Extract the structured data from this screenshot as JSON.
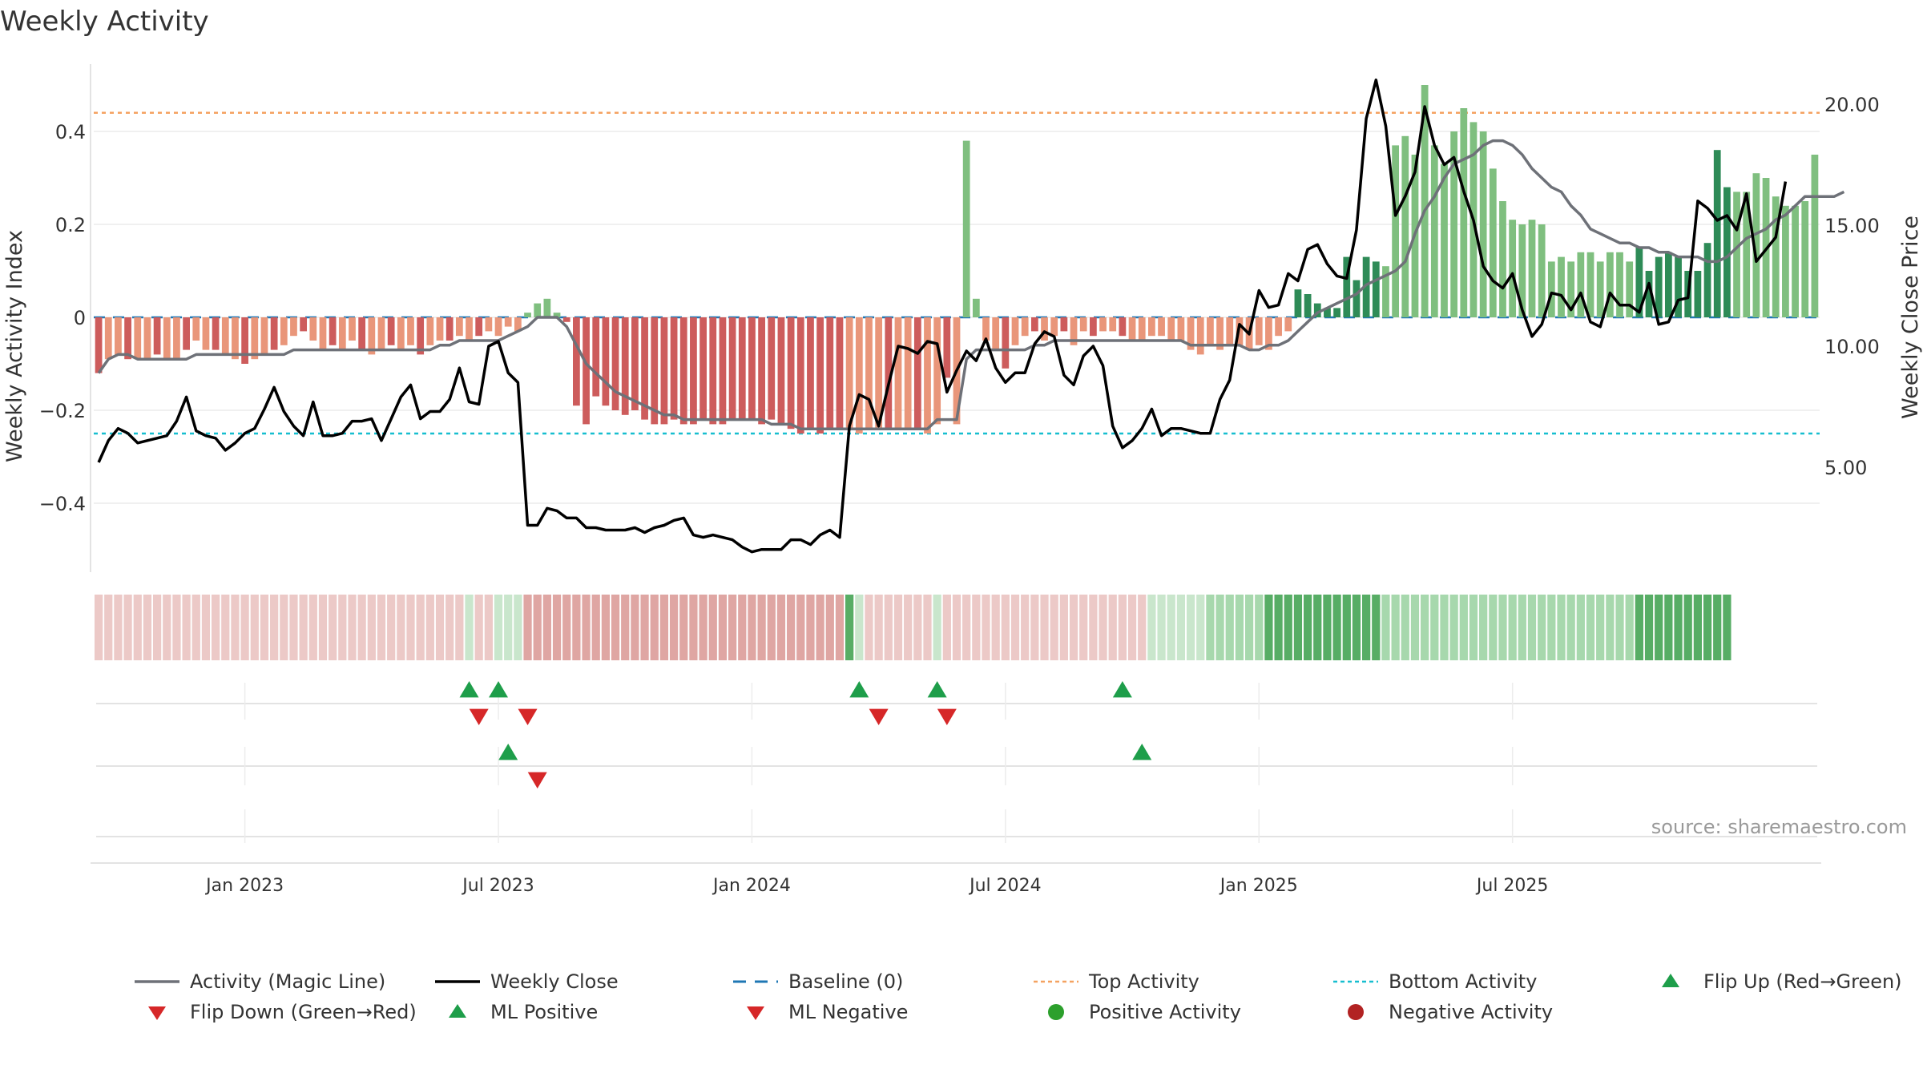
{
  "chart_data": {
    "type": "bar",
    "title": "Weekly Activity",
    "ylabel": "Weekly Activity Index",
    "y2label": "Weekly Close Price",
    "source": "source: sharemaestro.com",
    "ylim": [
      -0.55,
      0.55
    ],
    "y2lim": [
      0.6,
      22.2
    ],
    "y_ticks": [
      {
        "v": 0.4,
        "label": "0.4"
      },
      {
        "v": 0.2,
        "label": "0.2"
      },
      {
        "v": 0,
        "label": "0"
      },
      {
        "v": -0.2,
        "label": "−0.2"
      },
      {
        "v": -0.4,
        "label": "−0.4"
      }
    ],
    "y2_ticks": [
      {
        "v": 20,
        "label": "20.00"
      },
      {
        "v": 15,
        "label": "15.00"
      },
      {
        "v": 10,
        "label": "10.00"
      },
      {
        "v": 5,
        "label": "5.00"
      }
    ],
    "x_ticks": [
      {
        "week": 15,
        "label": "Jan 2023"
      },
      {
        "week": 41,
        "label": "Jul 2023"
      },
      {
        "week": 67,
        "label": "Jan 2024"
      },
      {
        "week": 93,
        "label": "Jul 2024"
      },
      {
        "week": 119,
        "label": "Jan 2025"
      },
      {
        "week": 145,
        "label": "Jul 2025"
      }
    ],
    "top_activity": 0.44,
    "bottom_activity": -0.25,
    "baseline": 0,
    "activity": [
      -0.12,
      -0.09,
      -0.08,
      -0.09,
      -0.09,
      -0.09,
      -0.08,
      -0.09,
      -0.09,
      -0.07,
      -0.05,
      -0.07,
      -0.07,
      -0.08,
      -0.09,
      -0.1,
      -0.09,
      -0.08,
      -0.07,
      -0.06,
      -0.04,
      -0.03,
      -0.05,
      -0.07,
      -0.06,
      -0.07,
      -0.05,
      -0.07,
      -0.08,
      -0.07,
      -0.06,
      -0.07,
      -0.06,
      -0.08,
      -0.06,
      -0.05,
      -0.05,
      -0.04,
      -0.05,
      -0.04,
      -0.03,
      -0.04,
      -0.02,
      -0.03,
      0.01,
      0.03,
      0.04,
      0.01,
      -0.01,
      -0.19,
      -0.23,
      -0.17,
      -0.19,
      -0.2,
      -0.21,
      -0.2,
      -0.22,
      -0.23,
      -0.23,
      -0.22,
      -0.23,
      -0.23,
      -0.22,
      -0.23,
      -0.23,
      -0.22,
      -0.22,
      -0.22,
      -0.23,
      -0.22,
      -0.23,
      -0.24,
      -0.25,
      -0.24,
      -0.25,
      -0.24,
      -0.24,
      -0.24,
      -0.25,
      -0.24,
      -0.24,
      -0.24,
      -0.24,
      -0.24,
      -0.24,
      -0.25,
      -0.23,
      -0.13,
      -0.23,
      0.38,
      0.04,
      -0.05,
      -0.07,
      -0.11,
      -0.06,
      -0.04,
      -0.03,
      -0.05,
      -0.04,
      -0.03,
      -0.06,
      -0.03,
      -0.04,
      -0.03,
      -0.03,
      -0.04,
      -0.05,
      -0.05,
      -0.04,
      -0.04,
      -0.05,
      -0.05,
      -0.07,
      -0.08,
      -0.06,
      -0.07,
      -0.06,
      -0.06,
      -0.07,
      -0.06,
      -0.07,
      -0.04,
      -0.03,
      0.06,
      0.05,
      0.03,
      0.02,
      0.02,
      0.13,
      0.08,
      0.13,
      0.12,
      0.11,
      0.37,
      0.39,
      0.35,
      0.5,
      0.37,
      0.33,
      0.4,
      0.45,
      0.42,
      0.4,
      0.32,
      0.25,
      0.21,
      0.2,
      0.21,
      0.2,
      0.12,
      0.13,
      0.12,
      0.14,
      0.14,
      0.12,
      0.14,
      0.14,
      0.12,
      0.15,
      0.1,
      0.13,
      0.14,
      0.13,
      0.1,
      0.1,
      0.16,
      0.36,
      0.28,
      0.27,
      0.27,
      0.31,
      0.3,
      0.26,
      0.24,
      0.24,
      0.25,
      0.35
    ],
    "magic_line": [
      -0.12,
      -0.09,
      -0.08,
      -0.08,
      -0.09,
      -0.09,
      -0.09,
      -0.09,
      -0.09,
      -0.09,
      -0.08,
      -0.08,
      -0.08,
      -0.08,
      -0.08,
      -0.08,
      -0.08,
      -0.08,
      -0.08,
      -0.08,
      -0.07,
      -0.07,
      -0.07,
      -0.07,
      -0.07,
      -0.07,
      -0.07,
      -0.07,
      -0.07,
      -0.07,
      -0.07,
      -0.07,
      -0.07,
      -0.07,
      -0.07,
      -0.06,
      -0.06,
      -0.05,
      -0.05,
      -0.05,
      -0.05,
      -0.05,
      -0.04,
      -0.03,
      -0.02,
      0.0,
      0.0,
      0.0,
      -0.02,
      -0.06,
      -0.1,
      -0.12,
      -0.14,
      -0.16,
      -0.17,
      -0.18,
      -0.19,
      -0.2,
      -0.21,
      -0.21,
      -0.22,
      -0.22,
      -0.22,
      -0.22,
      -0.22,
      -0.22,
      -0.22,
      -0.22,
      -0.22,
      -0.23,
      -0.23,
      -0.23,
      -0.24,
      -0.24,
      -0.24,
      -0.24,
      -0.24,
      -0.24,
      -0.24,
      -0.24,
      -0.24,
      -0.24,
      -0.24,
      -0.24,
      -0.24,
      -0.24,
      -0.22,
      -0.22,
      -0.22,
      -0.09,
      -0.07,
      -0.07,
      -0.07,
      -0.07,
      -0.07,
      -0.07,
      -0.06,
      -0.06,
      -0.05,
      -0.05,
      -0.05,
      -0.05,
      -0.05,
      -0.05,
      -0.05,
      -0.05,
      -0.05,
      -0.05,
      -0.05,
      -0.05,
      -0.05,
      -0.05,
      -0.06,
      -0.06,
      -0.06,
      -0.06,
      -0.06,
      -0.06,
      -0.07,
      -0.07,
      -0.06,
      -0.06,
      -0.05,
      -0.03,
      -0.01,
      0.01,
      0.02,
      0.03,
      0.04,
      0.05,
      0.07,
      0.08,
      0.09,
      0.1,
      0.12,
      0.18,
      0.23,
      0.26,
      0.3,
      0.33,
      0.34,
      0.35,
      0.37,
      0.38,
      0.38,
      0.37,
      0.35,
      0.32,
      0.3,
      0.28,
      0.27,
      0.24,
      0.22,
      0.19,
      0.18,
      0.17,
      0.16,
      0.16,
      0.15,
      0.15,
      0.14,
      0.14,
      0.13,
      0.13,
      0.13,
      0.12,
      0.12,
      0.13,
      0.15,
      0.17,
      0.18,
      0.19,
      0.21,
      0.22,
      0.24,
      0.26,
      0.26,
      0.26,
      0.26,
      0.27
    ],
    "weekly_close": [
      5.2,
      6.1,
      6.6,
      6.4,
      6.0,
      6.1,
      6.2,
      6.3,
      6.9,
      7.9,
      6.5,
      6.3,
      6.2,
      5.7,
      6.0,
      6.4,
      6.6,
      7.4,
      8.3,
      7.3,
      6.7,
      6.3,
      7.7,
      6.3,
      6.3,
      6.4,
      6.9,
      6.9,
      7.0,
      6.1,
      7.0,
      7.9,
      8.4,
      7.0,
      7.3,
      7.3,
      7.8,
      9.1,
      7.7,
      7.6,
      10.0,
      10.2,
      8.9,
      8.5,
      2.6,
      2.6,
      3.3,
      3.2,
      2.9,
      2.9,
      2.5,
      2.5,
      2.4,
      2.4,
      2.4,
      2.5,
      2.3,
      2.5,
      2.6,
      2.8,
      2.9,
      2.2,
      2.1,
      2.2,
      2.1,
      2.0,
      1.7,
      1.5,
      1.6,
      1.6,
      1.6,
      2.0,
      2.0,
      1.8,
      2.2,
      2.4,
      2.1,
      6.7,
      8.0,
      7.8,
      6.7,
      8.4,
      10.0,
      9.9,
      9.7,
      10.2,
      10.1,
      8.1,
      9.0,
      9.8,
      9.4,
      10.3,
      9.1,
      8.5,
      8.9,
      8.9,
      10.1,
      10.6,
      10.4,
      8.8,
      8.4,
      9.6,
      10.0,
      9.2,
      6.7,
      5.8,
      6.1,
      6.6,
      7.4,
      6.3,
      6.6,
      6.6,
      6.5,
      6.4,
      6.4,
      7.8,
      8.6,
      10.9,
      10.5,
      12.3,
      11.6,
      11.7,
      13.0,
      12.7,
      14.0,
      14.2,
      13.4,
      12.9,
      12.8,
      14.8,
      19.4,
      21.0,
      19.1,
      15.4,
      16.2,
      17.2,
      19.9,
      18.3,
      17.5,
      17.8,
      16.4,
      15.2,
      13.3,
      12.7,
      12.4,
      13.0,
      11.5,
      10.4,
      10.9,
      12.2,
      12.1,
      11.5,
      12.2,
      11.0,
      10.8,
      12.2,
      11.7,
      11.7,
      11.4,
      12.6,
      10.9,
      11.0,
      11.9,
      12.0,
      16.0,
      15.7,
      15.2,
      15.4,
      14.8,
      16.3,
      13.5,
      14.0,
      14.5,
      16.8
    ],
    "strip": [
      -1,
      -1,
      -1,
      -1,
      -1,
      -1,
      -1,
      -1,
      -1,
      -1,
      -1,
      -1,
      -1,
      -1,
      -1,
      -1,
      -1,
      -1,
      -1,
      -1,
      -1,
      -1,
      -1,
      -1,
      -1,
      -1,
      -1,
      -1,
      -1,
      -1,
      -1,
      -1,
      -1,
      -1,
      -1,
      -1,
      -1,
      -1,
      1,
      -1,
      -1,
      1,
      1,
      1,
      -2,
      -2,
      -2,
      -2,
      -2,
      -2,
      -2,
      -2,
      -2,
      -2,
      -2,
      -2,
      -2,
      -2,
      -2,
      -2,
      -2,
      -2,
      -2,
      -2,
      -2,
      -2,
      -2,
      -2,
      -2,
      -2,
      -2,
      -2,
      -2,
      -2,
      -2,
      -2,
      -2,
      3,
      1,
      -1,
      -1,
      -1,
      -1,
      -1,
      -1,
      -1,
      1,
      -1,
      -1,
      -1,
      -1,
      -1,
      -1,
      -1,
      -1,
      -1,
      -1,
      -1,
      -1,
      -1,
      -1,
      -1,
      -1,
      -1,
      -1,
      -1,
      -1,
      -1,
      1,
      1,
      1,
      1,
      1,
      1,
      2,
      2,
      2,
      2,
      2,
      2,
      3,
      3,
      3,
      3,
      3,
      3,
      3,
      3,
      3,
      3,
      3,
      3,
      2,
      2,
      2,
      2,
      2,
      2,
      2,
      2,
      2,
      2,
      2,
      2,
      2,
      2,
      2,
      2,
      2,
      2,
      2,
      2,
      2,
      2,
      2,
      2,
      2,
      2,
      3,
      3,
      3,
      3,
      3,
      3,
      3,
      3,
      3,
      3
    ],
    "flip_up": [
      38,
      41,
      78,
      86,
      105
    ],
    "flip_down": [
      39,
      44,
      80,
      87
    ],
    "ml_positive": [
      42,
      107
    ],
    "ml_negative": [
      45
    ],
    "legend": [
      {
        "key": "magic",
        "label": "Activity (Magic Line)",
        "color": "#6e7178"
      },
      {
        "key": "close",
        "label": "Weekly Close",
        "color": "#000000"
      },
      {
        "key": "baseline",
        "label": "Baseline (0)",
        "color": "#1f77b4"
      },
      {
        "key": "top",
        "label": "Top Activity",
        "color": "#f4a261"
      },
      {
        "key": "bottom",
        "label": "Bottom Activity",
        "color": "#17becf"
      },
      {
        "key": "flipup",
        "label": "Flip Up (Red→Green)",
        "color": "#1e9e4a"
      },
      {
        "key": "flipdown",
        "label": "Flip Down (Green→Red)",
        "color": "#d62728"
      },
      {
        "key": "mlpos",
        "label": "ML Positive",
        "color": "#1e9e4a"
      },
      {
        "key": "mlneg",
        "label": "ML Negative",
        "color": "#d62728"
      },
      {
        "key": "posact",
        "label": "Positive Activity",
        "color": "#2ca02c"
      },
      {
        "key": "negact",
        "label": "Negative Activity",
        "color": "#b22222"
      }
    ]
  }
}
